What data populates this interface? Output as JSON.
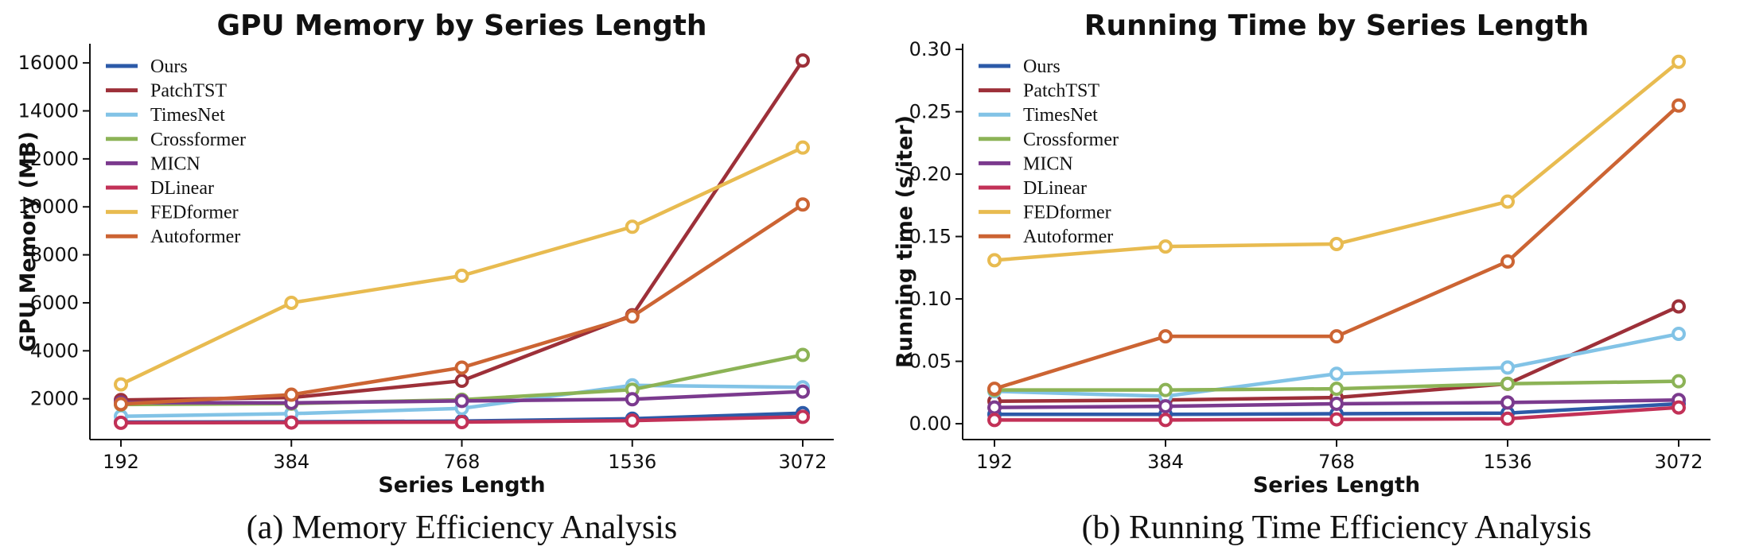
{
  "figure_background": "#ffffff",
  "text_color": "#111111",
  "chart_data": [
    {
      "id": "gpu-memory",
      "type": "line",
      "title": "GPU Memory by Series Length",
      "xlabel": "Series Length",
      "ylabel": "GPU Memory (MB)",
      "caption": "(a) Memory Efficiency Analysis",
      "categories": [
        "192",
        "384",
        "768",
        "1536",
        "3072"
      ],
      "ylim": [
        300,
        16800
      ],
      "yticks": [
        2000,
        4000,
        6000,
        8000,
        10000,
        12000,
        14000,
        16000
      ],
      "ytick_decimals": 0,
      "grid": false,
      "legend_position": "upper left",
      "series": [
        {
          "name": "Ours",
          "color": "#2c5aa8",
          "values": [
            1030,
            1040,
            1070,
            1170,
            1400
          ]
        },
        {
          "name": "PatchTST",
          "color": "#9d3039",
          "values": [
            1950,
            2050,
            2750,
            5480,
            16100
          ]
        },
        {
          "name": "TimesNet",
          "color": "#82c3e6",
          "values": [
            1270,
            1380,
            1600,
            2560,
            2480
          ]
        },
        {
          "name": "Crossformer",
          "color": "#8cb356",
          "values": [
            1760,
            1800,
            1960,
            2380,
            3830
          ]
        },
        {
          "name": "MICN",
          "color": "#7b3a8e",
          "values": [
            1840,
            1830,
            1910,
            1980,
            2300
          ]
        },
        {
          "name": "DLinear",
          "color": "#c23157",
          "values": [
            1000,
            1010,
            1030,
            1090,
            1250
          ]
        },
        {
          "name": "FEDformer",
          "color": "#e8bb50",
          "values": [
            2600,
            6000,
            7130,
            9170,
            12470
          ]
        },
        {
          "name": "Autoformer",
          "color": "#cc6433",
          "values": [
            1780,
            2170,
            3300,
            5430,
            10100
          ]
        }
      ]
    },
    {
      "id": "running-time",
      "type": "line",
      "title": "Running Time by Series Length",
      "xlabel": "Series Length",
      "ylabel": "Running time (s/iter)",
      "caption": "(b) Running Time Efficiency Analysis",
      "categories": [
        "192",
        "384",
        "768",
        "1536",
        "3072"
      ],
      "ylim": [
        -0.0127,
        0.3045
      ],
      "yticks": [
        0.0,
        0.05,
        0.1,
        0.15,
        0.2,
        0.25,
        0.3
      ],
      "ytick_decimals": 2,
      "grid": false,
      "legend_position": "upper left",
      "series": [
        {
          "name": "Ours",
          "color": "#2c5aa8",
          "values": [
            0.0075,
            0.0075,
            0.008,
            0.0085,
            0.016
          ]
        },
        {
          "name": "PatchTST",
          "color": "#9d3039",
          "values": [
            0.018,
            0.019,
            0.021,
            0.032,
            0.094
          ]
        },
        {
          "name": "TimesNet",
          "color": "#82c3e6",
          "values": [
            0.026,
            0.022,
            0.04,
            0.045,
            0.072
          ]
        },
        {
          "name": "Crossformer",
          "color": "#8cb356",
          "values": [
            0.027,
            0.027,
            0.028,
            0.032,
            0.034
          ]
        },
        {
          "name": "MICN",
          "color": "#7b3a8e",
          "values": [
            0.013,
            0.014,
            0.016,
            0.017,
            0.019
          ]
        },
        {
          "name": "DLinear",
          "color": "#c23157",
          "values": [
            0.003,
            0.003,
            0.0035,
            0.004,
            0.013
          ]
        },
        {
          "name": "FEDformer",
          "color": "#e8bb50",
          "values": [
            0.131,
            0.142,
            0.144,
            0.178,
            0.29
          ]
        },
        {
          "name": "Autoformer",
          "color": "#cc6433",
          "values": [
            0.028,
            0.07,
            0.07,
            0.13,
            0.255
          ]
        }
      ]
    }
  ]
}
